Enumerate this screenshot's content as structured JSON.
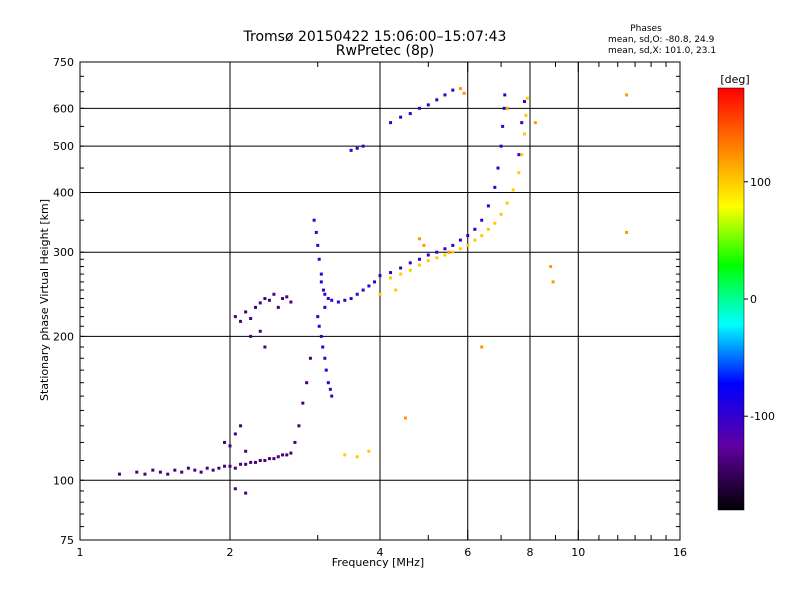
{
  "chart_data": {
    "type": "scatter",
    "title": "Tromsø 20150422 15:06:00–15:07:43",
    "subtitle": "RwPretec (8p)",
    "xlabel": "Frequency [MHz]",
    "ylabel": "Stationary phase Virtual Height [km]",
    "x_scale": "log",
    "y_scale": "log",
    "xlim": [
      1,
      16
    ],
    "ylim": [
      75,
      750
    ],
    "x_ticks": [
      1,
      2,
      4,
      6,
      8,
      10,
      16
    ],
    "y_ticks": [
      75,
      100,
      200,
      300,
      400,
      500,
      600,
      750
    ],
    "grid": true,
    "colorbar": {
      "label": "[deg]",
      "range": [
        -180,
        180
      ],
      "ticks": [
        100,
        0,
        -100
      ]
    },
    "phase_info": {
      "heading": "Phases",
      "line1": "mean, sd,O: -80.8, 24.9",
      "line2": "mean, sd,X: 101.0, 23.1"
    },
    "series": [
      {
        "points": [
          [
            1.2,
            103
          ],
          [
            1.3,
            104
          ],
          [
            1.35,
            103
          ],
          [
            1.4,
            105
          ],
          [
            1.45,
            104
          ],
          [
            1.5,
            103
          ],
          [
            1.55,
            105
          ],
          [
            1.6,
            104
          ],
          [
            1.65,
            106
          ],
          [
            1.7,
            105
          ],
          [
            1.75,
            104
          ],
          [
            1.8,
            106
          ],
          [
            1.85,
            105
          ],
          [
            1.9,
            106
          ],
          [
            1.95,
            107
          ],
          [
            2.0,
            107
          ],
          [
            2.05,
            106
          ],
          [
            2.1,
            108
          ],
          [
            2.15,
            108
          ],
          [
            2.2,
            109
          ],
          [
            2.25,
            109
          ],
          [
            2.3,
            110
          ],
          [
            2.35,
            110
          ],
          [
            2.4,
            111
          ],
          [
            2.45,
            111
          ],
          [
            2.5,
            112
          ],
          [
            2.55,
            113
          ],
          [
            2.6,
            113
          ],
          [
            2.65,
            114
          ],
          [
            2.7,
            120
          ],
          [
            2.75,
            130
          ],
          [
            2.8,
            145
          ],
          [
            2.85,
            160
          ],
          [
            2.9,
            180
          ],
          [
            1.95,
            120
          ],
          [
            2.0,
            118
          ],
          [
            2.05,
            125
          ],
          [
            2.1,
            130
          ],
          [
            2.15,
            115
          ],
          [
            2.05,
            220
          ],
          [
            2.1,
            215
          ],
          [
            2.15,
            225
          ],
          [
            2.2,
            218
          ],
          [
            2.25,
            230
          ],
          [
            2.3,
            235
          ],
          [
            2.35,
            240
          ],
          [
            2.4,
            238
          ],
          [
            2.45,
            245
          ],
          [
            2.5,
            230
          ],
          [
            2.55,
            240
          ],
          [
            2.6,
            242
          ],
          [
            2.65,
            236
          ],
          [
            2.2,
            200
          ],
          [
            2.3,
            205
          ],
          [
            2.35,
            190
          ],
          [
            2.05,
            96
          ],
          [
            2.15,
            94
          ]
        ],
        "phase": -140
      },
      {
        "points": [
          [
            2.95,
            350
          ],
          [
            2.98,
            330
          ],
          [
            3.0,
            310
          ],
          [
            3.02,
            290
          ],
          [
            3.05,
            270
          ],
          [
            3.08,
            250
          ],
          [
            3.1,
            230
          ],
          [
            3.0,
            220
          ],
          [
            3.02,
            210
          ],
          [
            3.05,
            200
          ],
          [
            3.07,
            190
          ],
          [
            3.1,
            180
          ],
          [
            3.12,
            170
          ],
          [
            3.15,
            160
          ],
          [
            3.18,
            155
          ],
          [
            3.2,
            150
          ],
          [
            3.05,
            260
          ],
          [
            3.1,
            245
          ],
          [
            3.15,
            240
          ],
          [
            3.2,
            238
          ],
          [
            3.3,
            236
          ],
          [
            3.4,
            238
          ],
          [
            3.5,
            240
          ],
          [
            3.6,
            245
          ],
          [
            3.7,
            250
          ],
          [
            3.8,
            255
          ],
          [
            3.9,
            260
          ],
          [
            4.0,
            268
          ],
          [
            4.2,
            272
          ],
          [
            4.4,
            278
          ],
          [
            4.6,
            285
          ],
          [
            4.8,
            290
          ],
          [
            5.0,
            296
          ],
          [
            5.2,
            300
          ],
          [
            5.4,
            305
          ],
          [
            5.6,
            310
          ],
          [
            5.8,
            318
          ],
          [
            6.0,
            325
          ],
          [
            6.2,
            335
          ],
          [
            6.4,
            350
          ],
          [
            6.6,
            375
          ],
          [
            6.8,
            410
          ],
          [
            6.9,
            450
          ],
          [
            7.0,
            500
          ],
          [
            7.05,
            550
          ],
          [
            7.1,
            600
          ],
          [
            7.12,
            640
          ],
          [
            3.5,
            490
          ],
          [
            3.6,
            495
          ],
          [
            3.7,
            500
          ],
          [
            4.2,
            560
          ],
          [
            4.4,
            575
          ],
          [
            4.6,
            585
          ],
          [
            4.8,
            600
          ],
          [
            5.0,
            610
          ],
          [
            5.2,
            625
          ],
          [
            5.4,
            640
          ],
          [
            5.6,
            655
          ],
          [
            7.6,
            480
          ],
          [
            7.7,
            560
          ],
          [
            7.8,
            620
          ]
        ],
        "phase": -100
      },
      {
        "points": [
          [
            4.2,
            265
          ],
          [
            4.4,
            270
          ],
          [
            4.6,
            275
          ],
          [
            4.8,
            282
          ],
          [
            5.0,
            288
          ],
          [
            5.2,
            292
          ],
          [
            5.4,
            296
          ],
          [
            5.6,
            300
          ],
          [
            5.8,
            305
          ],
          [
            6.0,
            310
          ],
          [
            6.2,
            318
          ],
          [
            6.4,
            325
          ],
          [
            6.6,
            335
          ],
          [
            6.8,
            345
          ],
          [
            7.0,
            360
          ],
          [
            7.2,
            380
          ],
          [
            7.4,
            405
          ],
          [
            7.6,
            440
          ],
          [
            7.7,
            480
          ],
          [
            7.8,
            530
          ],
          [
            7.85,
            580
          ],
          [
            7.9,
            630
          ],
          [
            3.8,
            115
          ],
          [
            3.6,
            112
          ],
          [
            3.4,
            113
          ],
          [
            4.0,
            245
          ],
          [
            4.3,
            250
          ]
        ],
        "phase": 100
      },
      {
        "points": [
          [
            5.8,
            660
          ],
          [
            5.9,
            645
          ],
          [
            7.2,
            600
          ],
          [
            8.2,
            560
          ],
          [
            8.8,
            280
          ],
          [
            8.9,
            260
          ],
          [
            12.5,
            640
          ],
          [
            12.5,
            330
          ],
          [
            6.4,
            190
          ],
          [
            4.5,
            135
          ],
          [
            4.8,
            320
          ],
          [
            4.9,
            310
          ],
          [
            5.5,
            300
          ]
        ],
        "phase": 120
      }
    ]
  }
}
